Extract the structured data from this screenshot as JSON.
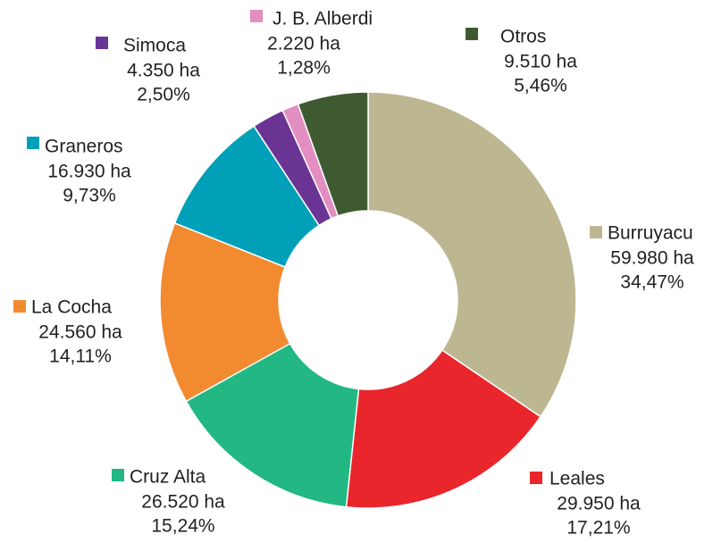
{
  "chart_data": {
    "type": "donut",
    "categories": [
      "Burruyacu",
      "Leales",
      "Cruz Alta",
      "La Cocha",
      "Graneros",
      "Simoca",
      "J. B. Alberdi",
      "Otros"
    ],
    "values": [
      59980,
      29950,
      26520,
      24560,
      16930,
      4350,
      2220,
      9510
    ],
    "value_labels": [
      "59.980 ha",
      "29.950 ha",
      "26.520 ha",
      "24.560 ha",
      "16.930 ha",
      "4.350 ha",
      "2.220 ha",
      "9.510 ha"
    ],
    "percentages": [
      34.47,
      17.21,
      15.24,
      14.11,
      9.73,
      2.5,
      1.28,
      5.46
    ],
    "percentage_labels": [
      "34,47%",
      "17,21%",
      "15,24%",
      "14,11%",
      "9,73%",
      "2,50%",
      "1,28%",
      "5,46%"
    ],
    "colors": [
      "#bcb791",
      "#e8262c",
      "#22b783",
      "#f28b30",
      "#00a0b8",
      "#6a3495",
      "#e38ec0",
      "#3f5a30"
    ]
  }
}
